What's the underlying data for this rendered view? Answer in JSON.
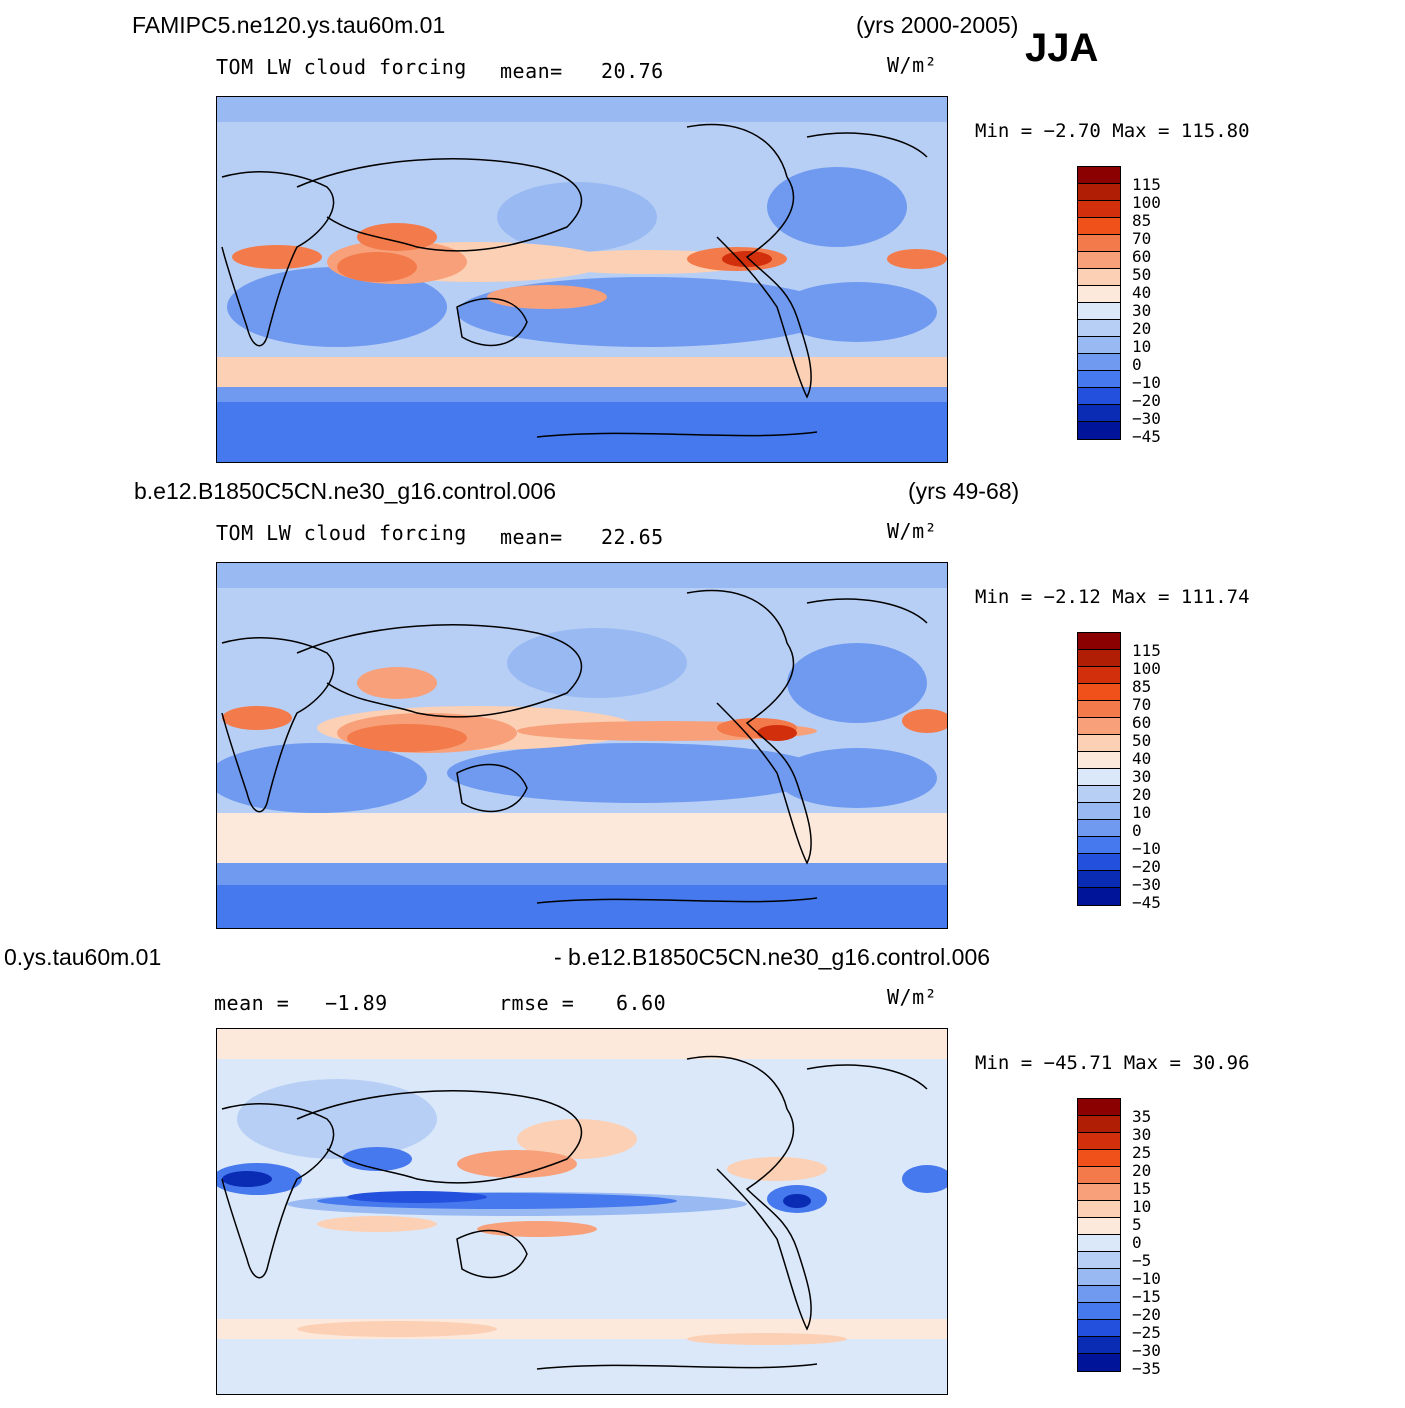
{
  "season": "JJA",
  "panels": [
    {
      "case_title": "FAMIPC5.ne120.ys.tau60m.01",
      "years": "(yrs 2000-2005)",
      "var_label": "TOM LW cloud forcing",
      "stat_label": "mean=",
      "stat_value": "20.76",
      "units": "W/m²",
      "minmax": "Min =   −2.70 Max = 115.80",
      "colorbar": {
        "colors": [
          "#8b0000",
          "#b01e05",
          "#d2300c",
          "#f0501a",
          "#f37a4a",
          "#f7a07a",
          "#fbd0b4",
          "#fde9dc",
          "#dbe8fa",
          "#b8cff5",
          "#98b9f2",
          "#6f9af0",
          "#4678ee",
          "#2350dd",
          "#0a2cb4",
          "#00149a"
        ],
        "labels": [
          "115",
          "100",
          "85",
          "70",
          "60",
          "50",
          "40",
          "30",
          "20",
          "10",
          "0",
          "−10",
          "−20",
          "−30",
          "−45"
        ]
      }
    },
    {
      "case_title": "b.e12.B1850C5CN.ne30_g16.control.006",
      "years": "(yrs 49-68)",
      "var_label": "TOM LW cloud forcing",
      "stat_label": "mean=",
      "stat_value": "22.65",
      "units": "W/m²",
      "minmax": "Min =   −2.12 Max = 111.74",
      "colorbar": {
        "colors": [
          "#8b0000",
          "#b01e05",
          "#d2300c",
          "#f0501a",
          "#f37a4a",
          "#f7a07a",
          "#fbd0b4",
          "#fde9dc",
          "#dbe8fa",
          "#b8cff5",
          "#98b9f2",
          "#6f9af0",
          "#4678ee",
          "#2350dd",
          "#0a2cb4",
          "#00149a"
        ],
        "labels": [
          "115",
          "100",
          "85",
          "70",
          "60",
          "50",
          "40",
          "30",
          "20",
          "10",
          "0",
          "−10",
          "−20",
          "−30",
          "−45"
        ]
      }
    },
    {
      "case_title_left": "0.ys.tau60m.01",
      "case_title_right": "- b.e12.B1850C5CN.ne30_g16.control.006",
      "stat_label": "mean =",
      "stat_value": "−1.89",
      "rmse_label": "rmse =",
      "rmse_value": "6.60",
      "units": "W/m²",
      "minmax": "Min = −45.71 Max =   30.96",
      "colorbar": {
        "colors": [
          "#8b0000",
          "#b01e05",
          "#d2300c",
          "#f0501a",
          "#f37a4a",
          "#f7a07a",
          "#fbd0b4",
          "#fde9dc",
          "#dbe8fa",
          "#b8cff5",
          "#98b9f2",
          "#6f9af0",
          "#4678ee",
          "#2350dd",
          "#0a2cb4",
          "#00149a"
        ],
        "labels": [
          "35",
          "30",
          "25",
          "20",
          "15",
          "10",
          "5",
          "0",
          "−5",
          "−10",
          "−15",
          "−20",
          "−25",
          "−30",
          "−35"
        ]
      }
    }
  ]
}
